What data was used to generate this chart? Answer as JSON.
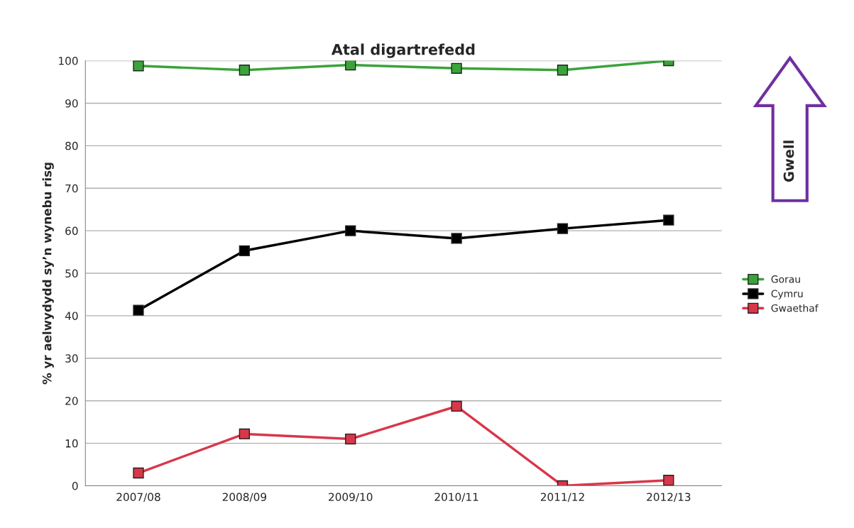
{
  "chart_data": {
    "type": "line",
    "title": "Atal digartrefedd",
    "ylabel": "% yr aelwydydd sy’n wynebu risg",
    "categories": [
      "2007/08",
      "2008/09",
      "2009/10",
      "2010/11",
      "2011/12",
      "2012/13"
    ],
    "series": [
      {
        "name": "Gorau",
        "color": "#3aa33a",
        "values": [
          98.8,
          97.8,
          99,
          98.2,
          97.8,
          100
        ]
      },
      {
        "name": "Cymru",
        "color": "#000000",
        "values": [
          41.3,
          55.3,
          60,
          58.2,
          60.5,
          62.5
        ]
      },
      {
        "name": "Gwaethaf",
        "color": "#d8374a",
        "values": [
          3,
          12.2,
          11,
          18.7,
          0,
          1.3
        ]
      }
    ],
    "ylim": [
      0,
      100
    ],
    "yticks": [
      0,
      10,
      20,
      30,
      40,
      50,
      60,
      70,
      80,
      90,
      100
    ],
    "grid": "y",
    "legend": "right",
    "marker": "square",
    "line_style": "solid",
    "annotations": [
      "Gwell"
    ]
  }
}
